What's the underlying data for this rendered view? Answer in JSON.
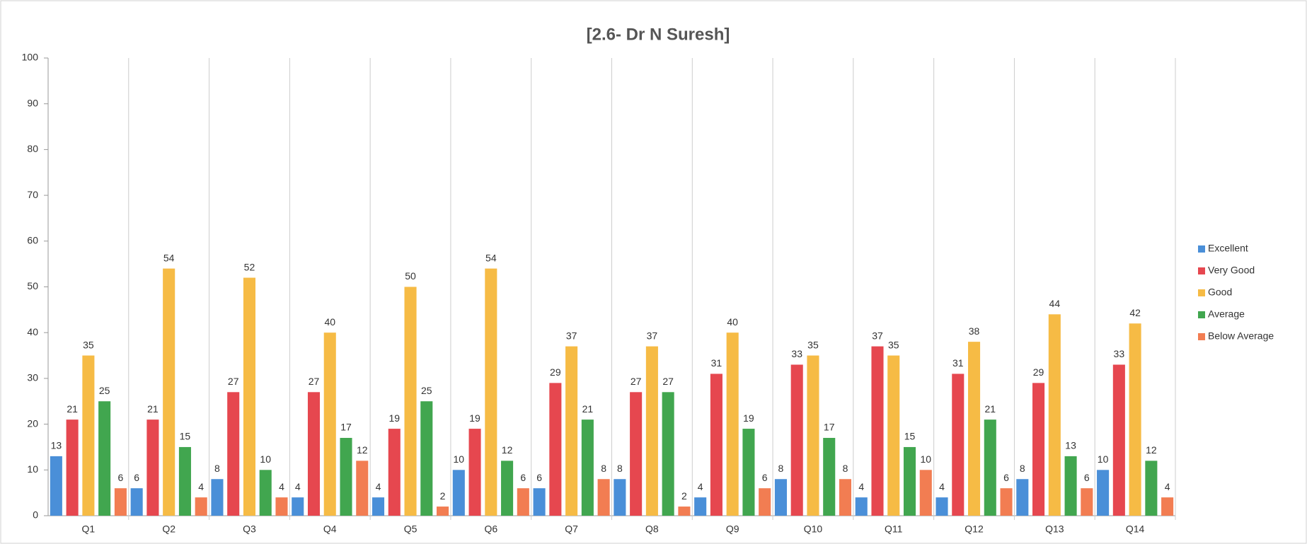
{
  "chart_data": {
    "type": "bar",
    "title": "[2.6- Dr N Suresh]",
    "categories": [
      "Q1",
      "Q2",
      "Q3",
      "Q4",
      "Q5",
      "Q6",
      "Q7",
      "Q8",
      "Q9",
      "Q10",
      "Q11",
      "Q12",
      "Q13",
      "Q14"
    ],
    "series": [
      {
        "name": "Excellent",
        "color": "#4a8fd8",
        "values": [
          13,
          6,
          8,
          4,
          4,
          10,
          6,
          8,
          4,
          8,
          4,
          4,
          8,
          10
        ]
      },
      {
        "name": "Very Good",
        "color": "#e6474f",
        "values": [
          21,
          21,
          27,
          27,
          19,
          19,
          29,
          27,
          31,
          33,
          37,
          31,
          29,
          33
        ]
      },
      {
        "name": "Good",
        "color": "#f6bb45",
        "values": [
          35,
          54,
          52,
          40,
          50,
          54,
          37,
          37,
          40,
          35,
          35,
          38,
          44,
          42
        ]
      },
      {
        "name": "Average",
        "color": "#41a64f",
        "values": [
          25,
          15,
          10,
          17,
          25,
          12,
          21,
          27,
          19,
          17,
          15,
          21,
          13,
          12
        ]
      },
      {
        "name": "Below Average",
        "color": "#f27d52",
        "values": [
          6,
          4,
          4,
          12,
          2,
          6,
          8,
          2,
          6,
          8,
          10,
          6,
          6,
          4
        ]
      }
    ],
    "ylim": [
      0,
      100
    ],
    "yticks": [
      0,
      10,
      20,
      30,
      40,
      50,
      60,
      70,
      80,
      90,
      100
    ],
    "legend": "right"
  }
}
